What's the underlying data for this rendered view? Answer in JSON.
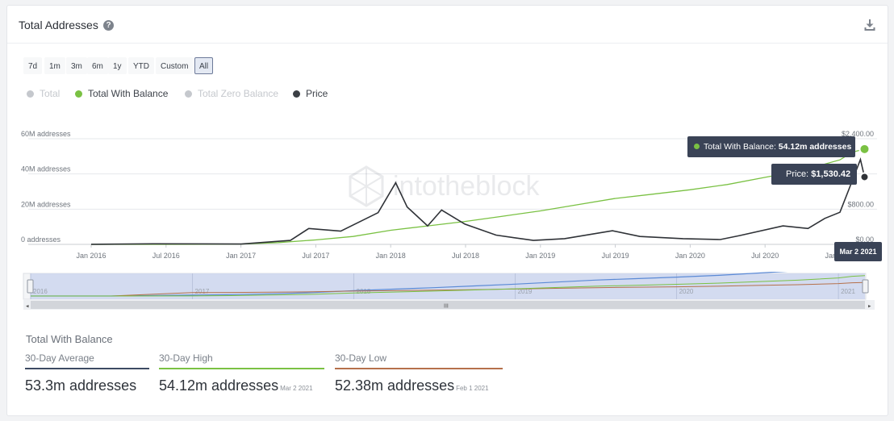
{
  "header": {
    "title": "Total Addresses",
    "help_icon": "question-circle-icon",
    "download_icon": "download-icon"
  },
  "ranges": [
    {
      "label": "7d",
      "active": false
    },
    {
      "label": "1m",
      "active": false
    },
    {
      "label": "3m",
      "active": false
    },
    {
      "label": "6m",
      "active": false
    },
    {
      "label": "1y",
      "active": false
    },
    {
      "label": "YTD",
      "active": false
    },
    {
      "label": "Custom",
      "active": false
    },
    {
      "label": "All",
      "active": true
    }
  ],
  "legend": [
    {
      "label": "Total",
      "color": "#c5c8cd",
      "enabled": false
    },
    {
      "label": "Total With Balance",
      "color": "#7ac143",
      "enabled": true
    },
    {
      "label": "Total Zero Balance",
      "color": "#c5c8cd",
      "enabled": false
    },
    {
      "label": "Price",
      "color": "#3b3f45",
      "enabled": true
    }
  ],
  "watermark": "intotheblock",
  "tooltip": {
    "balance_label": "Total With Balance: ",
    "balance_value": "54.12m addresses",
    "price_label": "Price: ",
    "price_value": "$1,530.42",
    "date": "Mar 2 2021"
  },
  "navigator": {
    "years": [
      "2016",
      "2017",
      "2018",
      "2019",
      "2020",
      "2021"
    ],
    "scroll_grip": "III"
  },
  "stats": {
    "title": "Total With Balance",
    "items": [
      {
        "label": "30-Day Average",
        "value": "53.3m addresses",
        "date": "",
        "color": "#3c4a63"
      },
      {
        "label": "30-Day High",
        "value": "54.12m addresses",
        "date": "Mar 2 2021",
        "color": "#7ac143"
      },
      {
        "label": "30-Day Low",
        "value": "52.38m addresses",
        "date": "Feb 1 2021",
        "color": "#b5704b"
      }
    ]
  },
  "colors": {
    "balance": "#7ac143",
    "price": "#2f3237",
    "tooltip_bg": "#3a4356",
    "navigator_fill": "#ccd6ee"
  },
  "chart_data": {
    "type": "line",
    "title": "",
    "x_tick_labels": [
      "Jan 2016",
      "Jul 2016",
      "Jan 2017",
      "Jul 2017",
      "Jan 2018",
      "Jul 2018",
      "Jan 2019",
      "Jul 2019",
      "Jan 2020",
      "Jul 2020",
      "Jan 2021"
    ],
    "y_left": {
      "tick_labels": [
        "0 addresses",
        "20M addresses",
        "40M addresses",
        "60M addresses"
      ],
      "range": [
        0,
        60000000
      ]
    },
    "y_right": {
      "tick_labels": [
        "$0.00",
        "$800.00",
        "$2,400.00"
      ],
      "range": [
        0,
        2400
      ]
    },
    "grid": true,
    "series": [
      {
        "name": "Total With Balance",
        "axis": "left",
        "x": [
          "2016-01-01",
          "2016-07-01",
          "2017-01-01",
          "2017-04-01",
          "2017-07-01",
          "2017-10-01",
          "2018-01-01",
          "2018-04-01",
          "2018-07-01",
          "2018-10-01",
          "2019-01-01",
          "2019-04-01",
          "2019-07-01",
          "2019-10-01",
          "2020-01-01",
          "2020-04-01",
          "2020-07-01",
          "2020-10-01",
          "2021-01-01",
          "2021-02-01",
          "2021-03-02"
        ],
        "values": [
          0,
          0,
          200000,
          1000000,
          2500000,
          4500000,
          8000000,
          10500000,
          13000000,
          16000000,
          19000000,
          22500000,
          26000000,
          28500000,
          31000000,
          34000000,
          38000000,
          42000000,
          48000000,
          52380000,
          54120000
        ]
      },
      {
        "name": "Price",
        "axis": "right",
        "x": [
          "2016-01-01",
          "2016-06-01",
          "2017-01-01",
          "2017-05-01",
          "2017-06-15",
          "2017-09-01",
          "2017-12-01",
          "2018-01-13",
          "2018-02-10",
          "2018-04-01",
          "2018-05-05",
          "2018-07-01",
          "2018-09-15",
          "2018-12-15",
          "2019-03-01",
          "2019-06-26",
          "2019-09-01",
          "2019-12-15",
          "2020-03-15",
          "2020-05-01",
          "2020-08-15",
          "2020-10-15",
          "2020-11-25",
          "2021-01-01",
          "2021-01-25",
          "2021-02-20",
          "2021-03-02"
        ],
        "values": [
          1,
          12,
          8,
          90,
          360,
          300,
          720,
          1400,
          850,
          420,
          780,
          460,
          210,
          90,
          130,
          310,
          180,
          130,
          110,
          200,
          420,
          360,
          590,
          730,
          1300,
          1930,
          1530.42
        ]
      }
    ],
    "legend_position": "top-left"
  }
}
